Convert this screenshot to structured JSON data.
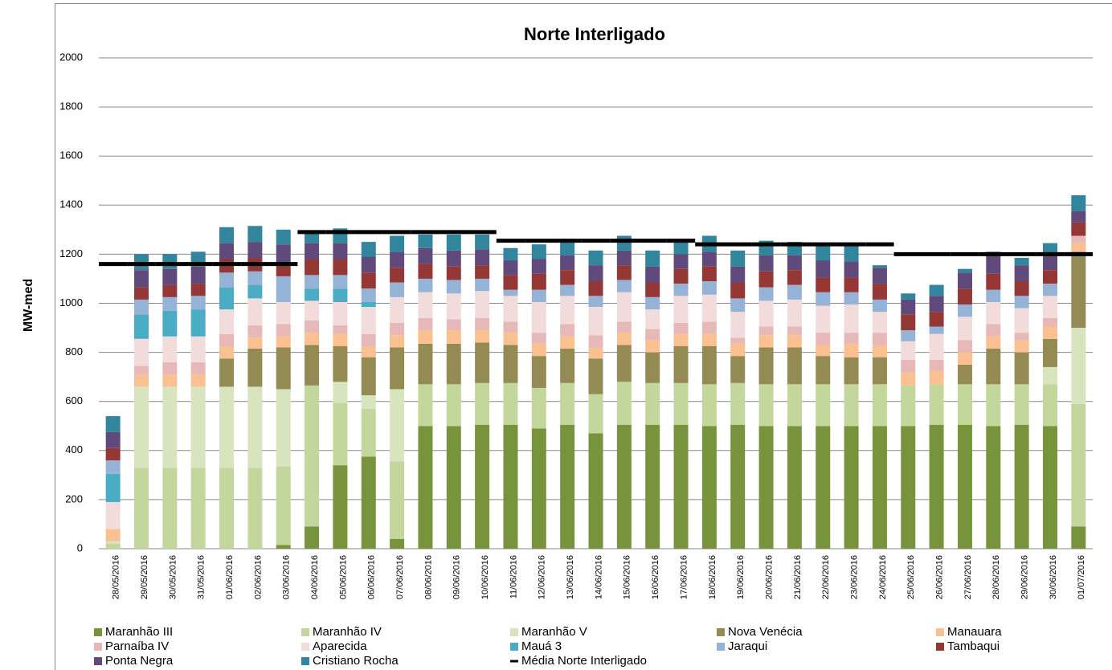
{
  "chart_data": {
    "type": "stacked_bar",
    "title": "Norte Interligado",
    "y_label": "MW-med",
    "categories": [
      "28/05/2016",
      "29/05/2016",
      "30/05/2016",
      "31/05/2016",
      "01/06/2016",
      "02/06/2016",
      "03/06/2016",
      "04/06/2016",
      "05/06/2016",
      "06/06/2016",
      "07/06/2016",
      "08/06/2016",
      "09/06/2016",
      "10/06/2016",
      "11/06/2016",
      "12/06/2016",
      "13/06/2016",
      "14/06/2016",
      "15/06/2016",
      "16/06/2016",
      "17/06/2016",
      "18/06/2016",
      "19/06/2016",
      "20/06/2016",
      "21/06/2016",
      "22/06/2016",
      "23/06/2016",
      "24/06/2016",
      "25/06/2016",
      "26/06/2016",
      "27/06/2016",
      "28/06/2016",
      "29/06/2016",
      "30/06/2016",
      "01/07/2016"
    ],
    "ylim": [
      0,
      2000
    ],
    "yticks": [
      0,
      200,
      400,
      600,
      800,
      1000,
      1200,
      1400,
      1600,
      1800,
      2000
    ],
    "grid": true,
    "series": [
      {
        "name": "Maranhão III",
        "color": "#77933c",
        "values": [
          0,
          0,
          0,
          0,
          0,
          0,
          15,
          90,
          340,
          375,
          40,
          500,
          500,
          505,
          505,
          490,
          505,
          470,
          505,
          505,
          505,
          500,
          505,
          500,
          500,
          500,
          500,
          500,
          500,
          505,
          505,
          500,
          505,
          500,
          90
        ]
      },
      {
        "name": "Maranhão IV",
        "color": "#c3d69b",
        "values": [
          20,
          330,
          330,
          330,
          330,
          330,
          320,
          575,
          255,
          195,
          315,
          170,
          170,
          170,
          170,
          165,
          170,
          160,
          175,
          170,
          170,
          170,
          170,
          170,
          170,
          170,
          170,
          170,
          165,
          165,
          165,
          170,
          165,
          170,
          500
        ]
      },
      {
        "name": "Maranhão V",
        "color": "#d7e4bd",
        "values": [
          10,
          330,
          330,
          330,
          330,
          330,
          315,
          0,
          85,
          55,
          295,
          0,
          0,
          0,
          0,
          0,
          0,
          0,
          0,
          0,
          0,
          0,
          0,
          0,
          0,
          0,
          0,
          0,
          0,
          0,
          0,
          0,
          0,
          70,
          310
        ]
      },
      {
        "name": "Nova Venécia",
        "color": "#948a54",
        "values": [
          0,
          0,
          0,
          0,
          115,
          155,
          170,
          165,
          145,
          155,
          170,
          165,
          165,
          165,
          155,
          130,
          140,
          145,
          150,
          125,
          150,
          155,
          110,
          150,
          150,
          115,
          110,
          110,
          0,
          0,
          80,
          145,
          130,
          115,
          310
        ]
      },
      {
        "name": "Manauara",
        "color": "#fac090",
        "values": [
          50,
          50,
          50,
          50,
          50,
          45,
          45,
          50,
          50,
          45,
          50,
          55,
          55,
          50,
          50,
          50,
          50,
          45,
          50,
          50,
          50,
          50,
          50,
          50,
          50,
          45,
          55,
          50,
          55,
          55,
          50,
          50,
          50,
          50,
          35
        ]
      },
      {
        "name": "Parnaíba IV",
        "color": "#e6b9b8",
        "values": [
          0,
          35,
          50,
          50,
          50,
          50,
          50,
          50,
          35,
          50,
          50,
          50,
          45,
          50,
          45,
          45,
          50,
          50,
          45,
          45,
          45,
          50,
          25,
          35,
          35,
          50,
          45,
          50,
          50,
          45,
          50,
          50,
          30,
          35,
          30
        ]
      },
      {
        "name": "Aparecida",
        "color": "#f2dcdb",
        "values": [
          110,
          110,
          105,
          105,
          100,
          110,
          90,
          80,
          95,
          110,
          105,
          105,
          105,
          110,
          105,
          125,
          115,
          115,
          120,
          80,
          110,
          110,
          105,
          105,
          110,
          110,
          115,
          85,
          75,
          105,
          95,
          90,
          100,
          90,
          0
        ]
      },
      {
        "name": "Mauá 3",
        "color": "#4bacc6",
        "values": [
          115,
          100,
          105,
          110,
          90,
          55,
          0,
          50,
          55,
          20,
          0,
          0,
          0,
          0,
          0,
          0,
          0,
          0,
          0,
          0,
          0,
          0,
          0,
          0,
          0,
          0,
          0,
          0,
          0,
          0,
          0,
          0,
          0,
          0,
          0
        ]
      },
      {
        "name": "Jaraqui",
        "color": "#95b3d7",
        "values": [
          55,
          60,
          55,
          55,
          60,
          55,
          105,
          55,
          55,
          55,
          60,
          55,
          55,
          50,
          25,
          50,
          45,
          45,
          50,
          50,
          50,
          55,
          55,
          55,
          60,
          55,
          50,
          50,
          45,
          30,
          50,
          50,
          50,
          50,
          0
        ]
      },
      {
        "name": "Tambaqui",
        "color": "#953735",
        "values": [
          50,
          50,
          50,
          50,
          55,
          55,
          50,
          65,
          65,
          65,
          60,
          60,
          55,
          55,
          60,
          65,
          60,
          60,
          60,
          60,
          60,
          60,
          65,
          65,
          60,
          60,
          60,
          65,
          65,
          60,
          65,
          65,
          60,
          55,
          55
        ]
      },
      {
        "name": "Ponta Negra",
        "color": "#604a7b",
        "values": [
          65,
          70,
          65,
          70,
          65,
          65,
          80,
          65,
          65,
          65,
          65,
          65,
          65,
          65,
          60,
          60,
          60,
          65,
          60,
          65,
          60,
          60,
          65,
          65,
          60,
          70,
          65,
          65,
          60,
          65,
          65,
          80,
          65,
          60,
          45
        ]
      },
      {
        "name": "Cristiano Rocha",
        "color": "#31859c",
        "values": [
          65,
          65,
          60,
          60,
          65,
          65,
          60,
          45,
          60,
          60,
          65,
          55,
          65,
          60,
          50,
          60,
          55,
          60,
          60,
          65,
          60,
          65,
          65,
          60,
          55,
          65,
          70,
          10,
          25,
          45,
          15,
          10,
          30,
          50,
          65
        ]
      }
    ],
    "average": {
      "name": "Média Norte Interligado",
      "color": "#000000",
      "values": [
        1160,
        1160,
        1160,
        1160,
        1160,
        1160,
        1160,
        1290,
        1290,
        1290,
        1290,
        1290,
        1290,
        1290,
        1255,
        1255,
        1255,
        1255,
        1255,
        1255,
        1255,
        1240,
        1240,
        1240,
        1240,
        1240,
        1240,
        1240,
        1200,
        1200,
        1200,
        1200,
        1200,
        1200,
        1200
      ]
    }
  }
}
